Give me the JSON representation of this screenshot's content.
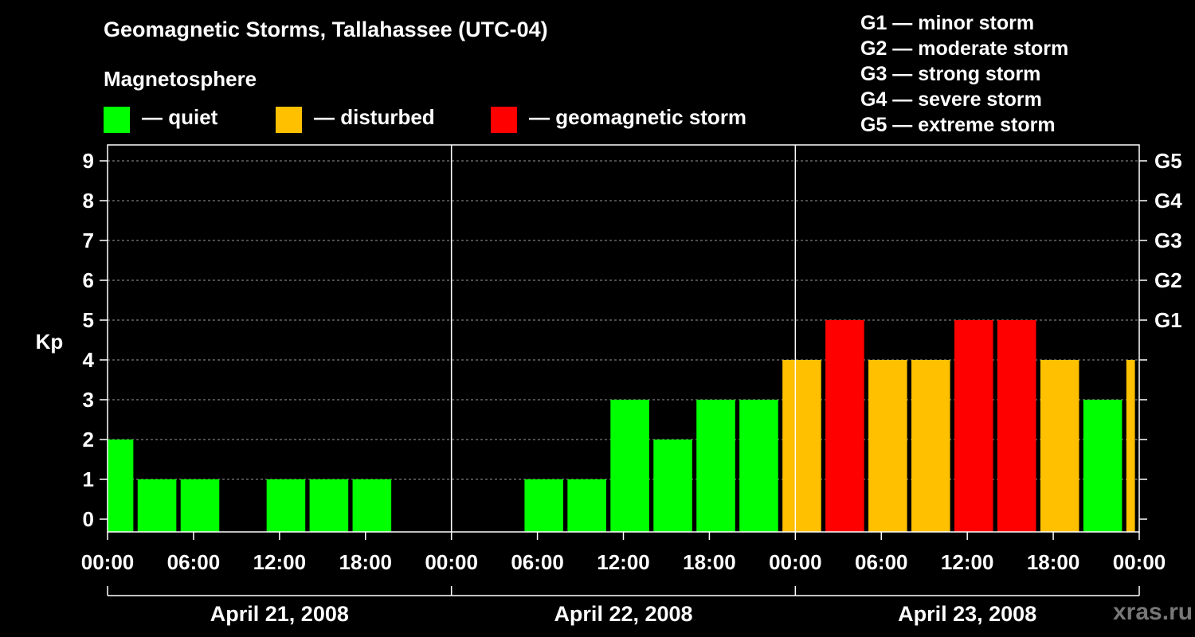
{
  "title": "Geomagnetic Storms, Tallahassee (UTC-04)",
  "magnetosphere_label": "Magnetosphere",
  "legend": [
    {
      "label": "— quiet",
      "color": "#00ff00"
    },
    {
      "label": "— disturbed",
      "color": "#ffc000"
    },
    {
      "label": "— geomagnetic storm",
      "color": "#ff0000"
    }
  ],
  "g_scale_legend": [
    "G1 — minor storm",
    "G2 — moderate storm",
    "G3 — strong storm",
    "G4 — severe storm",
    "G5 — extreme storm"
  ],
  "watermark": "xras.ru",
  "colors": {
    "quiet": "#00ff00",
    "disturbed": "#ffc000",
    "storm": "#ff0000"
  },
  "chart_data": {
    "type": "bar",
    "title": "Geomagnetic Storms, Tallahassee (UTC-04)",
    "ylabel": "Kp",
    "ylim": [
      0,
      9
    ],
    "yticks": [
      "0",
      "1",
      "2",
      "3",
      "4",
      "5",
      "6",
      "7",
      "8",
      "9"
    ],
    "right_ticks": [
      {
        "kp": 5,
        "label": "G1"
      },
      {
        "kp": 6,
        "label": "G2"
      },
      {
        "kp": 7,
        "label": "G3"
      },
      {
        "kp": 8,
        "label": "G4"
      },
      {
        "kp": 9,
        "label": "G5"
      }
    ],
    "x_range_hours": [
      0,
      72
    ],
    "xtick_hours": [
      0,
      6,
      12,
      18,
      24,
      30,
      36,
      42,
      48,
      54,
      60,
      66,
      72
    ],
    "xtick_labels": [
      "00:00",
      "06:00",
      "12:00",
      "18:00",
      "00:00",
      "06:00",
      "12:00",
      "18:00",
      "00:00",
      "06:00",
      "12:00",
      "18:00",
      "00:00"
    ],
    "day_dividers_hours": [
      24,
      48
    ],
    "dates": [
      {
        "label": "April 21, 2008",
        "start": 0,
        "end": 24
      },
      {
        "label": "April 22, 2008",
        "start": 24,
        "end": 48
      },
      {
        "label": "April 23, 2008",
        "start": 48,
        "end": 72
      }
    ],
    "bars": [
      {
        "start": 0,
        "end": 1.8,
        "kp": 2,
        "level": "quiet"
      },
      {
        "start": 2.1,
        "end": 4.8,
        "kp": 1,
        "level": "quiet"
      },
      {
        "start": 5.1,
        "end": 7.8,
        "kp": 1,
        "level": "quiet"
      },
      {
        "start": 11.1,
        "end": 13.8,
        "kp": 1,
        "level": "quiet"
      },
      {
        "start": 14.1,
        "end": 16.8,
        "kp": 1,
        "level": "quiet"
      },
      {
        "start": 17.1,
        "end": 19.8,
        "kp": 1,
        "level": "quiet"
      },
      {
        "start": 29.1,
        "end": 31.8,
        "kp": 1,
        "level": "quiet"
      },
      {
        "start": 32.1,
        "end": 34.8,
        "kp": 1,
        "level": "quiet"
      },
      {
        "start": 35.1,
        "end": 37.8,
        "kp": 3,
        "level": "quiet"
      },
      {
        "start": 38.1,
        "end": 40.8,
        "kp": 2,
        "level": "quiet"
      },
      {
        "start": 41.1,
        "end": 43.8,
        "kp": 3,
        "level": "quiet"
      },
      {
        "start": 44.1,
        "end": 46.8,
        "kp": 3,
        "level": "quiet"
      },
      {
        "start": 47.1,
        "end": 49.8,
        "kp": 4,
        "level": "disturbed"
      },
      {
        "start": 50.1,
        "end": 52.8,
        "kp": 5,
        "level": "storm"
      },
      {
        "start": 53.1,
        "end": 55.8,
        "kp": 4,
        "level": "disturbed"
      },
      {
        "start": 56.1,
        "end": 58.8,
        "kp": 4,
        "level": "disturbed"
      },
      {
        "start": 59.1,
        "end": 61.8,
        "kp": 5,
        "level": "storm"
      },
      {
        "start": 62.1,
        "end": 64.8,
        "kp": 5,
        "level": "storm"
      },
      {
        "start": 65.1,
        "end": 67.8,
        "kp": 4,
        "level": "disturbed"
      },
      {
        "start": 68.1,
        "end": 70.8,
        "kp": 3,
        "level": "quiet"
      },
      {
        "start": 71.1,
        "end": 71.7,
        "kp": 4,
        "level": "disturbed"
      }
    ]
  }
}
